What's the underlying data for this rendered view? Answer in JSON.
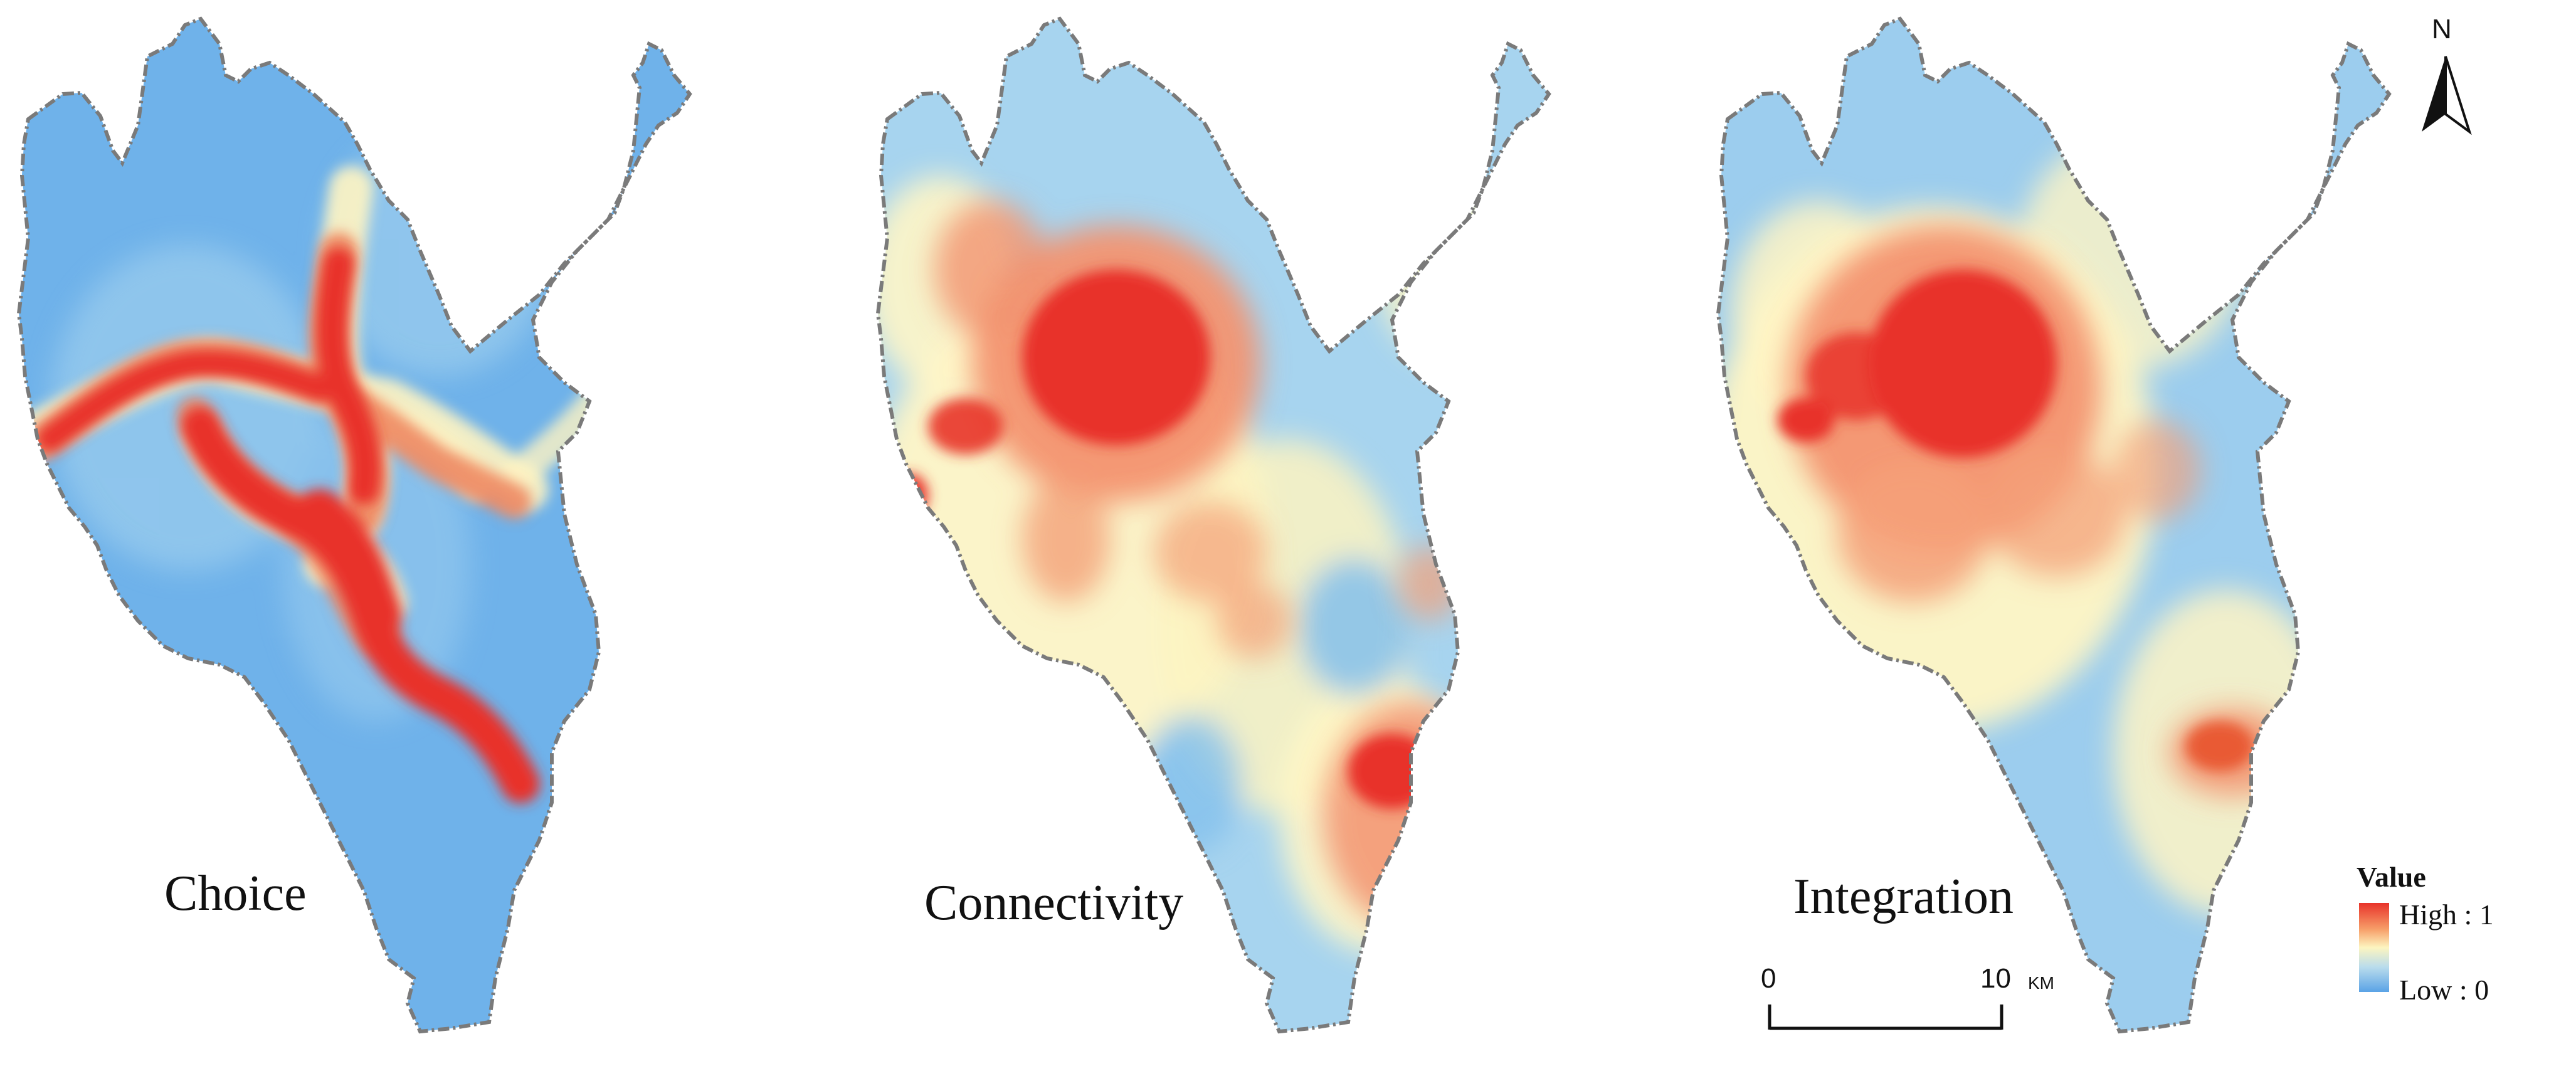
{
  "panels": [
    {
      "id": "choice",
      "label": "Choice"
    },
    {
      "id": "connectivity",
      "label": "Connectivity"
    },
    {
      "id": "integration",
      "label": "Integration"
    }
  ],
  "legend": {
    "title": "Value",
    "high_label": "High : 1",
    "low_label": "Low : 0",
    "colors": [
      "#d7191c",
      "#f46d43",
      "#fdae61",
      "#ffffbf",
      "#abd9e9",
      "#74b8e8",
      "#5aa3e6"
    ]
  },
  "scale_bar": {
    "start": "0",
    "end": "10",
    "unit": "KM"
  },
  "north_arrow": {
    "letter": "N",
    "icon": "north-arrow-icon"
  }
}
